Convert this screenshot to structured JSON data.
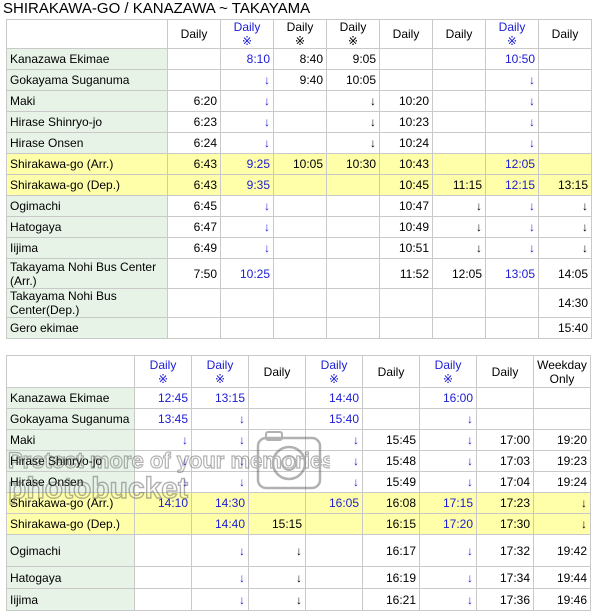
{
  "page": {
    "title": "SHIRAKAWA-GO / KANAZAWA ~ TAKAYAMA"
  },
  "colors": {
    "blue_text": "#1b1bd6",
    "stop_cell": "#e8f3e8",
    "highlight_row": "#ffffaa",
    "border": "#c9c9c9"
  },
  "table1": {
    "columns": [
      {
        "label": "Daily",
        "mark": "",
        "blue": false
      },
      {
        "label": "Daily",
        "mark": "※",
        "blue": true
      },
      {
        "label": "Daily",
        "mark": "※",
        "blue": false
      },
      {
        "label": "Daily",
        "mark": "※",
        "blue": false
      },
      {
        "label": "Daily",
        "mark": "",
        "blue": false
      },
      {
        "label": "Daily",
        "mark": "",
        "blue": false
      },
      {
        "label": "Daily",
        "mark": "※",
        "blue": true
      },
      {
        "label": "Daily",
        "mark": "",
        "blue": false
      }
    ],
    "rows": [
      {
        "stop": "Kanazawa Ekimae",
        "hl": false,
        "cells": [
          "",
          "8:10",
          "8:40",
          "9:05",
          "",
          "",
          "10:50",
          ""
        ]
      },
      {
        "stop": "Gokayama Suganuma",
        "hl": false,
        "cells": [
          "",
          "↓",
          "9:40",
          "10:05",
          "",
          "",
          "↓",
          ""
        ]
      },
      {
        "stop": "Maki",
        "hl": false,
        "cells": [
          "6:20",
          "↓",
          "",
          "↓",
          "10:20",
          "",
          "↓",
          ""
        ]
      },
      {
        "stop": "Hirase Shinryo-jo",
        "hl": false,
        "cells": [
          "6:23",
          "↓",
          "",
          "↓",
          "10:23",
          "",
          "↓",
          ""
        ]
      },
      {
        "stop": "Hirase Onsen",
        "hl": false,
        "cells": [
          "6:24",
          "↓",
          "",
          "↓",
          "10:24",
          "",
          "↓",
          ""
        ]
      },
      {
        "stop": "Shirakawa-go (Arr.)",
        "hl": true,
        "cells": [
          "6:43",
          "9:25",
          "10:05",
          "10:30",
          "10:43",
          "",
          "12:05",
          ""
        ]
      },
      {
        "stop": "Shirakawa-go (Dep.)",
        "hl": true,
        "cells": [
          "6:43",
          "9:35",
          "",
          "",
          "10:45",
          "11:15",
          "12:15",
          "13:15"
        ]
      },
      {
        "stop": "Ogimachi",
        "hl": false,
        "cells": [
          "6:45",
          "↓",
          "",
          "",
          "10:47",
          "↓",
          "↓",
          "↓"
        ]
      },
      {
        "stop": "Hatogaya",
        "hl": false,
        "cells": [
          "6:47",
          "↓",
          "",
          "",
          "10:49",
          "↓",
          "↓",
          "↓"
        ]
      },
      {
        "stop": "Iijima",
        "hl": false,
        "cells": [
          "6:49",
          "↓",
          "",
          "",
          "10:51",
          "↓",
          "↓",
          "↓"
        ]
      },
      {
        "stop": "Takayama Nohi Bus Center (Arr.)",
        "hl": false,
        "cells": [
          "7:50",
          "10:25",
          "",
          "",
          "11:52",
          "12:05",
          "13:05",
          "14:05"
        ]
      },
      {
        "stop": "Takayama Nohi Bus Center(Dep.)",
        "hl": false,
        "cells": [
          "",
          "",
          "",
          "",
          "",
          "",
          "",
          "14:30"
        ]
      },
      {
        "stop": "Gero ekimae",
        "hl": false,
        "cells": [
          "",
          "",
          "",
          "",
          "",
          "",
          "",
          "15:40"
        ]
      }
    ]
  },
  "table2": {
    "columns": [
      {
        "label": "Daily",
        "mark": "※",
        "blue": true
      },
      {
        "label": "Daily",
        "mark": "※",
        "blue": true
      },
      {
        "label": "Daily",
        "mark": "",
        "blue": false
      },
      {
        "label": "Daily",
        "mark": "※",
        "blue": true
      },
      {
        "label": "Daily",
        "mark": "",
        "blue": false
      },
      {
        "label": "Daily",
        "mark": "※",
        "blue": true
      },
      {
        "label": "Daily",
        "mark": "",
        "blue": false
      },
      {
        "label": "Weekday Only",
        "mark": "",
        "blue": false
      }
    ],
    "rows": [
      {
        "stop": "Kanazawa Ekimae",
        "hl": false,
        "cells": [
          "12:45",
          "13:15",
          "",
          "14:40",
          "",
          "16:00",
          "",
          ""
        ]
      },
      {
        "stop": "Gokayama Suganuma",
        "hl": false,
        "cells": [
          "13:45",
          "↓",
          "",
          "15:40",
          "",
          "↓",
          "",
          ""
        ]
      },
      {
        "stop": "Maki",
        "hl": false,
        "cells": [
          "↓",
          "↓",
          "",
          "↓",
          "15:45",
          "↓",
          "17:00",
          "19:20"
        ]
      },
      {
        "stop": "Hirase Shinryo-jo",
        "hl": false,
        "cells": [
          "↓",
          "↓",
          "",
          "↓",
          "15:48",
          "↓",
          "17:03",
          "19:23"
        ]
      },
      {
        "stop": "Hirase Onsen",
        "hl": false,
        "cells": [
          "↓",
          "↓",
          "",
          "↓",
          "15:49",
          "↓",
          "17:04",
          "19:24"
        ]
      },
      {
        "stop": "Shirakawa-go (Arr.)",
        "hl": true,
        "cells": [
          "14:10",
          "14:30",
          "",
          "16:05",
          "16:08",
          "17:15",
          "17:23",
          "↓"
        ]
      },
      {
        "stop": "Shirakawa-go (Dep.)",
        "hl": true,
        "cells": [
          "",
          "14:40",
          "15:15",
          "",
          "16:15",
          "17:20",
          "17:30",
          "↓"
        ]
      },
      {
        "stop": "Ogimachi",
        "hl": false,
        "cells": [
          "",
          "↓",
          "↓",
          "",
          "16:17",
          "↓",
          "17:32",
          "19:42"
        ]
      },
      {
        "stop": "Hatogaya",
        "hl": false,
        "cells": [
          "",
          "↓",
          "↓",
          "",
          "16:19",
          "↓",
          "17:34",
          "19:44"
        ]
      },
      {
        "stop": "Iijima",
        "hl": false,
        "cells": [
          "",
          "↓",
          "↓",
          "",
          "16:21",
          "↓",
          "17:36",
          "19:46"
        ]
      }
    ]
  },
  "watermark": {
    "line1": "Protect more of your memories for less!",
    "brand": "photobucket"
  }
}
